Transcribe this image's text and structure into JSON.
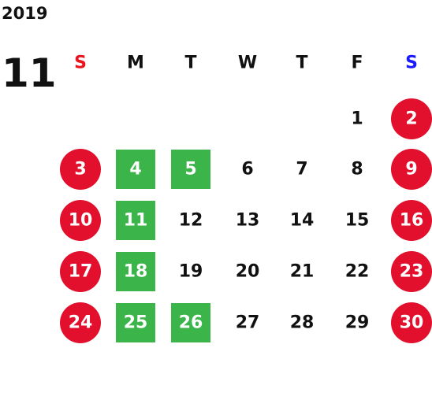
{
  "year": "2019",
  "month": "11",
  "circle_color": "#e3102d",
  "square_color": "#3bb54a",
  "weekdays": [
    {
      "label": "S",
      "color": "#e8141e"
    },
    {
      "label": "M",
      "color": "#111111"
    },
    {
      "label": "T",
      "color": "#111111"
    },
    {
      "label": "W",
      "color": "#111111"
    },
    {
      "label": "T",
      "color": "#111111"
    },
    {
      "label": "F",
      "color": "#111111"
    },
    {
      "label": "S",
      "color": "#1a1aff"
    }
  ],
  "weeks": [
    [
      null,
      null,
      null,
      null,
      null,
      {
        "label": "1"
      },
      {
        "label": "2",
        "mark": "circle"
      }
    ],
    [
      {
        "label": "3",
        "mark": "circle"
      },
      {
        "label": "4",
        "mark": "square"
      },
      {
        "label": "5",
        "mark": "square"
      },
      {
        "label": "6"
      },
      {
        "label": "7"
      },
      {
        "label": "8"
      },
      {
        "label": "9",
        "mark": "circle"
      }
    ],
    [
      {
        "label": "10",
        "mark": "circle"
      },
      {
        "label": "11",
        "mark": "square"
      },
      {
        "label": "12"
      },
      {
        "label": "13"
      },
      {
        "label": "14"
      },
      {
        "label": "15"
      },
      {
        "label": "16",
        "mark": "circle"
      }
    ],
    [
      {
        "label": "17",
        "mark": "circle"
      },
      {
        "label": "18",
        "mark": "square"
      },
      {
        "label": "19"
      },
      {
        "label": "20"
      },
      {
        "label": "21"
      },
      {
        "label": "22"
      },
      {
        "label": "23",
        "mark": "circle"
      }
    ],
    [
      {
        "label": "24",
        "mark": "circle"
      },
      {
        "label": "25",
        "mark": "square"
      },
      {
        "label": "26",
        "mark": "square"
      },
      {
        "label": "27"
      },
      {
        "label": "28"
      },
      {
        "label": "29"
      },
      {
        "label": "30",
        "mark": "circle"
      }
    ]
  ]
}
